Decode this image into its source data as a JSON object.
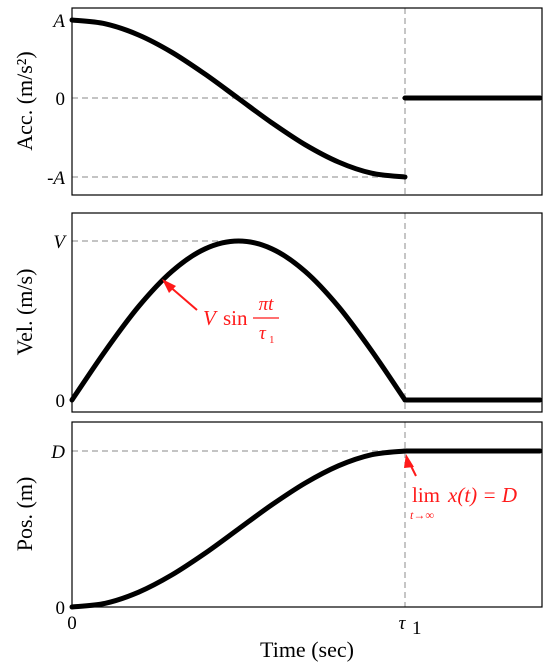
{
  "chart_data": [
    {
      "type": "line",
      "ylabel": "Acc. (m/s²)",
      "yticks": [
        "A",
        "0",
        "-A"
      ],
      "xticks": [],
      "series": [
        {
          "x": [
            0,
            0.1,
            0.2,
            0.3,
            0.4,
            0.5,
            0.6,
            0.7,
            0.8,
            0.9,
            1.0
          ],
          "y": [
            1,
            0.951,
            0.809,
            0.588,
            0.309,
            0,
            -0.309,
            -0.588,
            -0.809,
            -0.951,
            -1
          ]
        },
        {
          "x": [
            1.0,
            1.42
          ],
          "y": [
            0,
            0
          ]
        }
      ],
      "ylim": [
        -1,
        1
      ],
      "xlim": [
        0,
        1.42
      ],
      "grid": "dashed reference lines at 0, -A and at t = τ1"
    },
    {
      "type": "line",
      "ylabel": "Vel. (m/s)",
      "yticks": [
        "V",
        "0"
      ],
      "xticks": [],
      "series": [
        {
          "x": [
            0,
            0.1,
            0.2,
            0.3,
            0.4,
            0.5,
            0.6,
            0.7,
            0.8,
            0.9,
            1.0
          ],
          "y": [
            0,
            0.309,
            0.588,
            0.809,
            0.951,
            1,
            0.951,
            0.809,
            0.588,
            0.309,
            0
          ]
        },
        {
          "x": [
            1.0,
            1.42
          ],
          "y": [
            0,
            0
          ]
        }
      ],
      "ylim": [
        0,
        1
      ],
      "xlim": [
        0,
        1.42
      ],
      "annotation": {
        "V": "V",
        "sin": "sin",
        "num": "πt",
        "den": "τ",
        "den_sub": "1"
      }
    },
    {
      "type": "line",
      "ylabel": "Pos. (m)",
      "yticks": [
        "D",
        "0"
      ],
      "xticks": [
        "0",
        "τ",
        "1"
      ],
      "xlabel": "Time (sec)",
      "series": [
        {
          "x": [
            0,
            0.1,
            0.2,
            0.3,
            0.4,
            0.5,
            0.6,
            0.7,
            0.8,
            0.9,
            1.0
          ],
          "y": [
            0,
            0.024,
            0.095,
            0.206,
            0.345,
            0.5,
            0.655,
            0.794,
            0.905,
            0.976,
            1
          ]
        },
        {
          "x": [
            1.0,
            1.42
          ],
          "y": [
            1,
            1
          ]
        }
      ],
      "ylim": [
        0,
        1
      ],
      "xlim": [
        0,
        1.42
      ],
      "annotation": {
        "lim": "lim",
        "expr": "x(t) = D",
        "under": "t→∞"
      }
    }
  ]
}
